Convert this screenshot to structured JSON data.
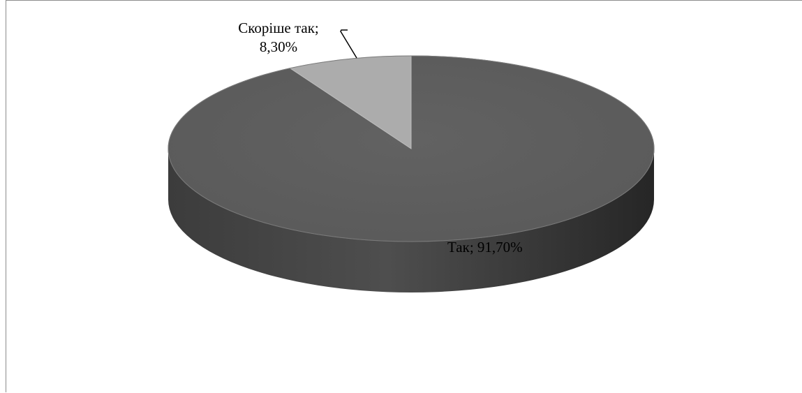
{
  "chart_data": {
    "type": "pie",
    "style": "3d",
    "slices": [
      {
        "label": "Так",
        "value": 91.7,
        "display": "Так; 91,70%",
        "color": "#5f5f5f"
      },
      {
        "label": "Скоріше так",
        "value": 8.3,
        "display_line1": "Скоріше так;",
        "display_line2": "8,30%",
        "color": "#acacac"
      }
    ],
    "legend": "none"
  }
}
